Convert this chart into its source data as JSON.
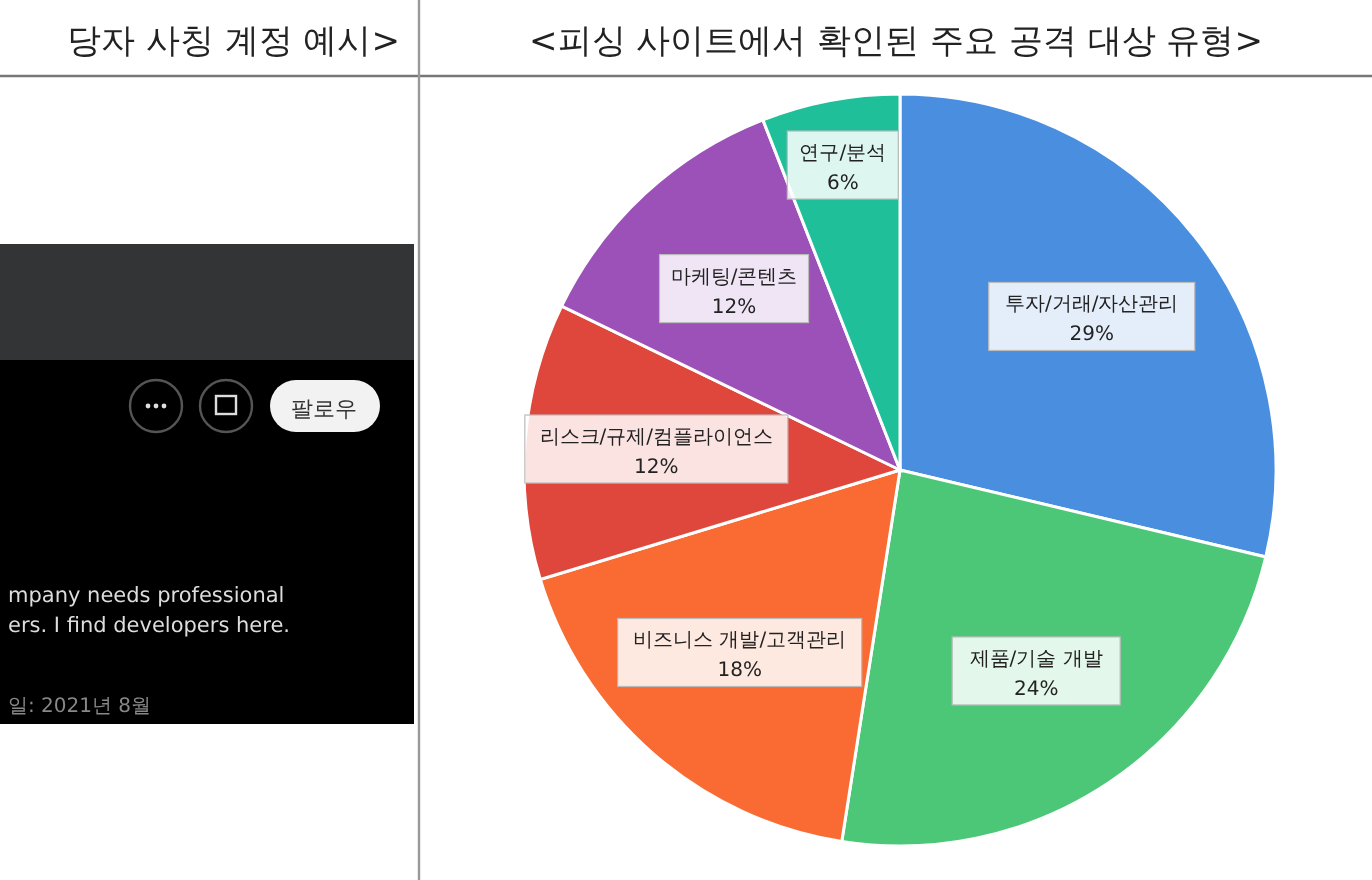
{
  "chart_data": [
    {
      "type": "other",
      "title": "당자 사칭 계정 예시>",
      "annotations": [
        "팔로우",
        "mpany needs professional",
        "ers. I find developers here.",
        "일: 2021년 8월"
      ]
    },
    {
      "type": "pie",
      "title": "<피싱 사이트에서 확인된 주요 공격 대상 유형>",
      "categories": [
        "투자/거래/자산관리",
        "제품/기술 개발",
        "비즈니스 개발/고객관리",
        "리스크/규제/컴플라이언스",
        "마케팅/콘텐츠",
        "연구/분석"
      ],
      "values": [
        29,
        24,
        18,
        12,
        12,
        6
      ],
      "value_labels": [
        "29%",
        "24%",
        "18%",
        "12%",
        "12%",
        "6%"
      ],
      "colors": [
        "#4a8fdf",
        "#4cc777",
        "#f96b32",
        "#e0473c",
        "#9b51b8",
        "#1fbf9a"
      ]
    }
  ]
}
